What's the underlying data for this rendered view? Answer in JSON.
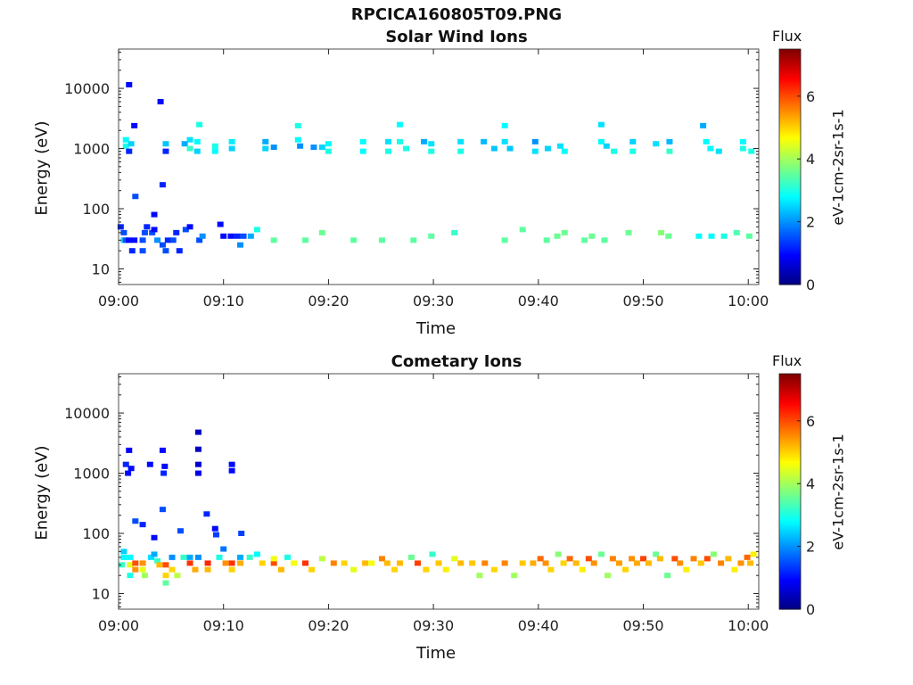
{
  "figure_title": "RPCICA160805T09.PNG",
  "colormap": [
    "#00007f",
    "#0000ff",
    "#007fff",
    "#00ffff",
    "#7fff7f",
    "#ffff00",
    "#ff7f00",
    "#ff0000",
    "#7f0000"
  ],
  "chart_data": [
    {
      "type": "heatmap",
      "title": "Solar Wind Ions",
      "xlabel": "Time",
      "ylabel": "Energy (eV)",
      "xticks": [
        "09:00",
        "09:10",
        "09:20",
        "09:30",
        "09:40",
        "09:50",
        "10:00"
      ],
      "xlim_minutes": [
        0,
        61
      ],
      "ylim": [
        5.5,
        45000
      ],
      "yscale": "log",
      "yticks": [
        {
          "value": 10,
          "label": "10"
        },
        {
          "value": 100,
          "label": "100"
        },
        {
          "value": 1000,
          "label": "1000"
        },
        {
          "value": 10000,
          "label": "10000"
        }
      ],
      "colorbar": {
        "title": "Flux",
        "label": "eV-1cm-2sr-1s-1",
        "range": [
          0,
          7.5
        ],
        "ticks": [
          "0",
          "2",
          "4",
          "6"
        ]
      },
      "cells": [
        [
          0.2,
          50,
          1.2
        ],
        [
          0.5,
          40,
          1.5
        ],
        [
          0.5,
          30,
          2.5
        ],
        [
          0.7,
          30,
          1.5
        ],
        [
          1.0,
          30,
          1.0
        ],
        [
          1.3,
          20,
          1.2
        ],
        [
          1.5,
          30,
          1.0
        ],
        [
          2.3,
          30,
          1.5
        ],
        [
          2.3,
          20,
          1.5
        ],
        [
          2.5,
          40,
          1.5
        ],
        [
          2.7,
          50,
          1.2
        ],
        [
          3.2,
          40,
          1.5
        ],
        [
          3.4,
          45,
          1.0
        ],
        [
          3.7,
          30,
          2.0
        ],
        [
          4.2,
          25,
          1.5
        ],
        [
          4.5,
          20,
          1.5
        ],
        [
          4.7,
          30,
          1.2
        ],
        [
          5.2,
          30,
          1.5
        ],
        [
          5.5,
          40,
          1.2
        ],
        [
          5.8,
          20,
          1.2
        ],
        [
          6.4,
          45,
          1.5
        ],
        [
          6.8,
          50,
          1.0
        ],
        [
          7.7,
          30,
          1.5
        ],
        [
          8.0,
          35,
          2.0
        ],
        [
          9.7,
          55,
          1.0
        ],
        [
          10.0,
          35,
          1.0
        ],
        [
          10.7,
          35,
          1.0
        ],
        [
          11.3,
          35,
          1.2
        ],
        [
          11.9,
          35,
          1.5
        ],
        [
          11.6,
          25,
          2.0
        ],
        [
          12.6,
          35,
          2.2
        ],
        [
          13.2,
          45,
          3.0
        ],
        [
          14.8,
          30,
          3.5
        ],
        [
          17.8,
          30,
          3.5
        ],
        [
          19.4,
          40,
          3.6
        ],
        [
          22.4,
          30,
          3.5
        ],
        [
          25.1,
          30,
          3.5
        ],
        [
          28.1,
          30,
          3.5
        ],
        [
          29.8,
          35,
          3.5
        ],
        [
          32.0,
          40,
          3.2
        ],
        [
          36.8,
          30,
          3.5
        ],
        [
          38.5,
          45,
          3.5
        ],
        [
          40.8,
          30,
          3.5
        ],
        [
          41.8,
          35,
          3.6
        ],
        [
          42.5,
          40,
          3.6
        ],
        [
          44.4,
          30,
          3.5
        ],
        [
          45.1,
          35,
          3.6
        ],
        [
          46.3,
          30,
          3.5
        ],
        [
          48.6,
          40,
          3.6
        ],
        [
          51.7,
          40,
          3.8
        ],
        [
          52.4,
          35,
          3.6
        ],
        [
          55.3,
          35,
          2.8
        ],
        [
          56.5,
          35,
          2.8
        ],
        [
          57.7,
          35,
          3.0
        ],
        [
          58.9,
          40,
          3.4
        ],
        [
          60.1,
          35,
          3.5
        ],
        [
          0.7,
          1400,
          2.8
        ],
        [
          0.7,
          1100,
          3.0
        ],
        [
          1.2,
          1200,
          2.5
        ],
        [
          1.0,
          900,
          1.2
        ],
        [
          1.0,
          11500,
          1.0
        ],
        [
          4.0,
          6000,
          1.0
        ],
        [
          1.5,
          2400,
          1.0
        ],
        [
          4.5,
          1200,
          2.4
        ],
        [
          4.5,
          900,
          1.2
        ],
        [
          6.3,
          1200,
          2.2
        ],
        [
          6.8,
          1400,
          2.6
        ],
        [
          6.8,
          1000,
          3.2
        ],
        [
          7.7,
          2500,
          3.0
        ],
        [
          7.5,
          1300,
          2.8
        ],
        [
          7.5,
          900,
          2.5
        ],
        [
          9.2,
          1100,
          3.0
        ],
        [
          9.2,
          900,
          2.8
        ],
        [
          10.8,
          1300,
          2.7
        ],
        [
          10.8,
          1000,
          2.5
        ],
        [
          14.0,
          1300,
          2.2
        ],
        [
          14.0,
          1000,
          2.5
        ],
        [
          14.8,
          1050,
          2.0
        ],
        [
          17.1,
          2400,
          3.0
        ],
        [
          17.1,
          1400,
          2.8
        ],
        [
          17.3,
          1100,
          2.0
        ],
        [
          18.6,
          1050,
          2.0
        ],
        [
          19.4,
          1050,
          2.5
        ],
        [
          20.0,
          1200,
          2.8
        ],
        [
          20.0,
          900,
          3.0
        ],
        [
          23.3,
          1300,
          2.8
        ],
        [
          23.3,
          900,
          2.8
        ],
        [
          25.7,
          1300,
          2.6
        ],
        [
          25.7,
          900,
          3.0
        ],
        [
          26.8,
          2500,
          2.8
        ],
        [
          26.8,
          1300,
          3.0
        ],
        [
          27.4,
          1000,
          3.0
        ],
        [
          29.1,
          1300,
          2.2
        ],
        [
          29.8,
          1200,
          2.6
        ],
        [
          29.8,
          900,
          3.0
        ],
        [
          32.6,
          1300,
          2.6
        ],
        [
          32.6,
          900,
          3.0
        ],
        [
          34.8,
          1300,
          2.3
        ],
        [
          35.8,
          1000,
          2.4
        ],
        [
          36.8,
          2400,
          2.8
        ],
        [
          36.8,
          1300,
          2.6
        ],
        [
          37.3,
          1000,
          2.4
        ],
        [
          39.7,
          1300,
          2.0
        ],
        [
          39.7,
          900,
          2.6
        ],
        [
          40.9,
          1000,
          2.5
        ],
        [
          42.1,
          1100,
          2.6
        ],
        [
          42.5,
          900,
          2.8
        ],
        [
          46.0,
          2500,
          2.6
        ],
        [
          46.0,
          1300,
          2.8
        ],
        [
          46.5,
          1100,
          2.5
        ],
        [
          47.2,
          900,
          3.0
        ],
        [
          49.0,
          1300,
          2.5
        ],
        [
          49.0,
          900,
          3.0
        ],
        [
          51.2,
          1200,
          2.6
        ],
        [
          52.5,
          1300,
          2.3
        ],
        [
          52.5,
          900,
          3.2
        ],
        [
          55.7,
          2400,
          2.2
        ],
        [
          56.0,
          1300,
          2.8
        ],
        [
          56.4,
          1000,
          2.8
        ],
        [
          57.2,
          900,
          2.6
        ],
        [
          59.5,
          1300,
          2.8
        ],
        [
          59.5,
          1000,
          3.0
        ],
        [
          60.3,
          900,
          3.0
        ],
        [
          1.6,
          160,
          1.5
        ],
        [
          4.2,
          250,
          1.2
        ],
        [
          3.4,
          80,
          1.0
        ]
      ]
    },
    {
      "type": "heatmap",
      "title": "Cometary Ions",
      "xlabel": "Time",
      "ylabel": "Energy (eV)",
      "xticks": [
        "09:00",
        "09:10",
        "09:20",
        "09:30",
        "09:40",
        "09:50",
        "10:00"
      ],
      "xlim_minutes": [
        0,
        61
      ],
      "yscale": "log",
      "ylim": [
        5.5,
        45000
      ],
      "yticks": [
        {
          "value": 10,
          "label": "10"
        },
        {
          "value": 100,
          "label": "100"
        },
        {
          "value": 1000,
          "label": "1000"
        },
        {
          "value": 10000,
          "label": "10000"
        }
      ],
      "colorbar": {
        "title": "Flux",
        "label": "eV-1cm-2sr-1s-1",
        "range": [
          0,
          7.5
        ],
        "ticks": [
          "0",
          "2",
          "4",
          "6"
        ]
      },
      "cells": [
        [
          0.5,
          50,
          2.5
        ],
        [
          0.5,
          40,
          2.8
        ],
        [
          0.3,
          30,
          3.2
        ],
        [
          1.1,
          40,
          2.8
        ],
        [
          1.1,
          30,
          4.5
        ],
        [
          1.6,
          32,
          6.0
        ],
        [
          1.6,
          25,
          5.5
        ],
        [
          1.1,
          20,
          3.0
        ],
        [
          2.3,
          32,
          5.5
        ],
        [
          2.3,
          25,
          4.5
        ],
        [
          2.5,
          20,
          4.0
        ],
        [
          3.1,
          40,
          2.6
        ],
        [
          3.4,
          45,
          2.2
        ],
        [
          3.7,
          35,
          3.2
        ],
        [
          3.9,
          30,
          5.2
        ],
        [
          4.5,
          30,
          6.0
        ],
        [
          4.5,
          20,
          5.0
        ],
        [
          4.5,
          15,
          3.5
        ],
        [
          5.1,
          40,
          2.0
        ],
        [
          5.1,
          25,
          5.0
        ],
        [
          5.6,
          20,
          4.2
        ],
        [
          6.2,
          40,
          3.2
        ],
        [
          6.8,
          32,
          6.2
        ],
        [
          6.8,
          40,
          2.2
        ],
        [
          7.3,
          25,
          5.3
        ],
        [
          7.6,
          40,
          2.0
        ],
        [
          8.5,
          32,
          6.3
        ],
        [
          8.5,
          25,
          5.2
        ],
        [
          9.6,
          40,
          3.0
        ],
        [
          10.2,
          32,
          5.5
        ],
        [
          10.8,
          32,
          6.2
        ],
        [
          10.8,
          25,
          5.0
        ],
        [
          11.6,
          40,
          2.2
        ],
        [
          11.6,
          32,
          5.3
        ],
        [
          12.5,
          40,
          3.2
        ],
        [
          13.2,
          45,
          2.8
        ],
        [
          13.7,
          32,
          5.0
        ],
        [
          14.8,
          32,
          6.0
        ],
        [
          14.8,
          38,
          4.6
        ],
        [
          15.5,
          25,
          5.2
        ],
        [
          16.1,
          40,
          3.0
        ],
        [
          16.7,
          32,
          4.6
        ],
        [
          17.8,
          32,
          6.2
        ],
        [
          18.4,
          25,
          5.0
        ],
        [
          19.4,
          38,
          4.2
        ],
        [
          20.5,
          32,
          5.6
        ],
        [
          21.5,
          32,
          5.0
        ],
        [
          22.4,
          25,
          4.5
        ],
        [
          23.5,
          32,
          5.2
        ],
        [
          24.1,
          32,
          4.6
        ],
        [
          25.1,
          38,
          5.6
        ],
        [
          25.6,
          32,
          5.2
        ],
        [
          26.3,
          25,
          5.0
        ],
        [
          26.8,
          32,
          5.2
        ],
        [
          27.9,
          40,
          3.6
        ],
        [
          28.5,
          32,
          6.1
        ],
        [
          29.3,
          25,
          5.0
        ],
        [
          29.9,
          45,
          3.2
        ],
        [
          30.5,
          32,
          5.1
        ],
        [
          31.2,
          25,
          4.8
        ],
        [
          32.0,
          38,
          4.5
        ],
        [
          32.6,
          32,
          5.2
        ],
        [
          33.7,
          32,
          5.1
        ],
        [
          34.4,
          20,
          4.0
        ],
        [
          34.9,
          32,
          5.6
        ],
        [
          35.8,
          25,
          5.0
        ],
        [
          36.8,
          32,
          5.6
        ],
        [
          37.7,
          20,
          4.0
        ],
        [
          38.5,
          32,
          5.1
        ],
        [
          39.5,
          32,
          5.3
        ],
        [
          40.2,
          38,
          5.8
        ],
        [
          40.7,
          32,
          5.5
        ],
        [
          41.2,
          25,
          5.0
        ],
        [
          41.9,
          45,
          3.8
        ],
        [
          42.4,
          32,
          5.0
        ],
        [
          43.0,
          38,
          5.8
        ],
        [
          43.6,
          32,
          5.2
        ],
        [
          44.2,
          25,
          4.8
        ],
        [
          44.8,
          38,
          6.0
        ],
        [
          45.3,
          32,
          5.5
        ],
        [
          46.0,
          45,
          3.6
        ],
        [
          46.6,
          20,
          4.0
        ],
        [
          47.1,
          38,
          5.6
        ],
        [
          47.7,
          32,
          5.4
        ],
        [
          48.3,
          25,
          5.0
        ],
        [
          48.9,
          38,
          5.5
        ],
        [
          49.4,
          32,
          5.3
        ],
        [
          50.0,
          38,
          6.1
        ],
        [
          50.5,
          32,
          5.2
        ],
        [
          51.2,
          45,
          3.6
        ],
        [
          51.6,
          38,
          5.2
        ],
        [
          52.3,
          20,
          3.6
        ],
        [
          53.0,
          38,
          6.0
        ],
        [
          53.5,
          32,
          5.5
        ],
        [
          54.1,
          25,
          4.8
        ],
        [
          54.8,
          38,
          5.6
        ],
        [
          55.5,
          32,
          5.1
        ],
        [
          56.1,
          38,
          6.0
        ],
        [
          56.7,
          45,
          3.8
        ],
        [
          57.4,
          32,
          5.6
        ],
        [
          58.1,
          38,
          5.2
        ],
        [
          58.7,
          25,
          4.8
        ],
        [
          59.3,
          32,
          5.5
        ],
        [
          59.9,
          40,
          5.8
        ],
        [
          60.2,
          32,
          5.2
        ],
        [
          60.5,
          45,
          4.8
        ],
        [
          0.7,
          1400,
          1.2
        ],
        [
          1.2,
          1200,
          1.0
        ],
        [
          0.9,
          1000,
          1.0
        ],
        [
          1.0,
          2400,
          0.9
        ],
        [
          3.0,
          1400,
          1.0
        ],
        [
          4.2,
          2400,
          1.0
        ],
        [
          4.4,
          1300,
          1.0
        ],
        [
          4.3,
          1000,
          1.2
        ],
        [
          7.6,
          4800,
          0.5
        ],
        [
          7.6,
          2500,
          0.5
        ],
        [
          7.6,
          1400,
          0.6
        ],
        [
          7.6,
          1000,
          0.8
        ],
        [
          10.8,
          1400,
          1.0
        ],
        [
          10.8,
          1100,
          1.0
        ],
        [
          8.4,
          210,
          1.2
        ],
        [
          9.2,
          120,
          1.0
        ],
        [
          9.3,
          95,
          1.4
        ],
        [
          11.7,
          100,
          1.4
        ],
        [
          1.6,
          160,
          1.5
        ],
        [
          2.3,
          140,
          1.2
        ],
        [
          4.2,
          250,
          1.5
        ],
        [
          5.9,
          110,
          1.5
        ],
        [
          3.4,
          85,
          1.0
        ],
        [
          10.0,
          55,
          1.8
        ]
      ]
    }
  ]
}
